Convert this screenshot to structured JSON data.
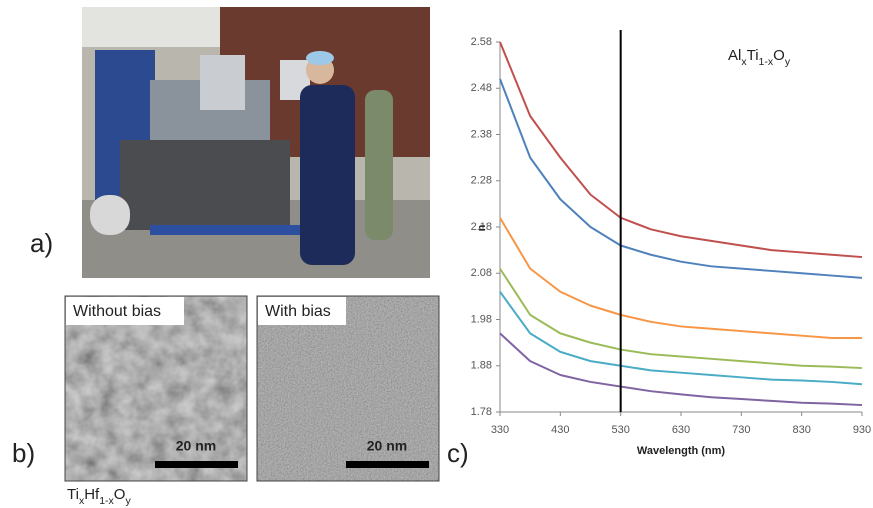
{
  "panels": {
    "a": "a)",
    "b": "b)",
    "c": "c)"
  },
  "tem": {
    "left_label": "Without bias",
    "right_label": "With bias",
    "left_scale": "20 nm",
    "right_scale": "20 nm",
    "material": [
      "Ti",
      "x",
      "Hf",
      "1-x",
      "O",
      "y"
    ]
  },
  "chart_data": {
    "type": "line",
    "xlabel": "Wavelength (nm)",
    "ylabel": "n",
    "annotation": [
      "Al",
      "x",
      "Ti",
      "1-x",
      "O",
      "y"
    ],
    "vline": 530,
    "x": [
      330,
      380,
      430,
      480,
      530,
      580,
      630,
      680,
      730,
      780,
      830,
      880,
      930
    ],
    "series": [
      {
        "color": "#c0504d",
        "values": [
          2.58,
          2.42,
          2.33,
          2.25,
          2.2,
          2.175,
          2.16,
          2.15,
          2.14,
          2.13,
          2.125,
          2.12,
          2.115
        ]
      },
      {
        "color": "#4f81bd",
        "values": [
          2.5,
          2.33,
          2.24,
          2.18,
          2.14,
          2.12,
          2.105,
          2.095,
          2.09,
          2.085,
          2.08,
          2.075,
          2.07
        ]
      },
      {
        "color": "#f79646",
        "values": [
          2.2,
          2.09,
          2.04,
          2.01,
          1.99,
          1.975,
          1.965,
          1.96,
          1.955,
          1.95,
          1.945,
          1.94,
          1.94
        ]
      },
      {
        "color": "#9bbb59",
        "values": [
          2.09,
          1.99,
          1.95,
          1.93,
          1.915,
          1.905,
          1.9,
          1.895,
          1.89,
          1.885,
          1.88,
          1.878,
          1.875
        ]
      },
      {
        "color": "#4bacc6",
        "values": [
          2.04,
          1.95,
          1.91,
          1.89,
          1.88,
          1.87,
          1.865,
          1.86,
          1.855,
          1.85,
          1.848,
          1.845,
          1.84
        ]
      },
      {
        "color": "#8064a2",
        "values": [
          1.95,
          1.89,
          1.86,
          1.845,
          1.835,
          1.825,
          1.818,
          1.812,
          1.808,
          1.804,
          1.8,
          1.798,
          1.795
        ]
      }
    ],
    "xlim": [
      330,
      930
    ],
    "xticks": [
      330,
      430,
      530,
      630,
      730,
      830,
      930
    ],
    "ylim": [
      1.78,
      2.58
    ],
    "yticks": [
      1.78,
      1.88,
      1.98,
      2.08,
      2.18,
      2.28,
      2.38,
      2.48,
      2.58
    ],
    "grid": false
  }
}
